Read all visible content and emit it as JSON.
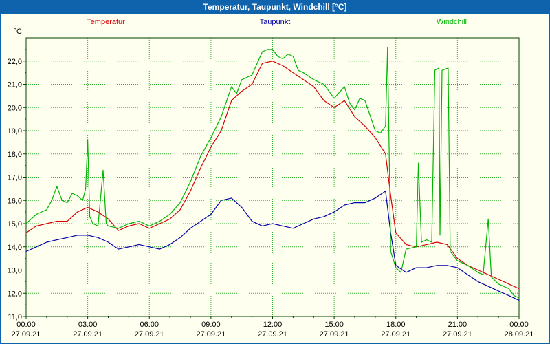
{
  "window": {
    "title": "Temperatur, Taupunkt, Windchill [°C]"
  },
  "colors": {
    "titlebar": "#0f63ad",
    "window_border": "#0f63ad",
    "background": "#fffff0",
    "axis_text": "#000000"
  },
  "legend": {
    "items": [
      {
        "label": "Temperatur",
        "color": "#d40000"
      },
      {
        "label": "Taupunkt",
        "color": "#0000a8"
      },
      {
        "label": "Windchill",
        "color": "#00b400"
      }
    ]
  },
  "chart_data": {
    "type": "line",
    "title": "Temperatur, Taupunkt, Windchill [°C]",
    "xlabel": "",
    "ylabel": "°C",
    "ylim": [
      11.0,
      23.0
    ],
    "xlim_hours": [
      0,
      24
    ],
    "grid": {
      "color": "#00a000",
      "style": "dotted",
      "x_step_hours": 3,
      "y_step": 1.0
    },
    "frame_color": "#004000",
    "yticks": [
      {
        "v": 11,
        "label": "11,0"
      },
      {
        "v": 12,
        "label": "12,0"
      },
      {
        "v": 13,
        "label": "13,0"
      },
      {
        "v": 14,
        "label": "14,0"
      },
      {
        "v": 15,
        "label": "15,0"
      },
      {
        "v": 16,
        "label": "16,0"
      },
      {
        "v": 17,
        "label": "17,0"
      },
      {
        "v": 18,
        "label": "18,0"
      },
      {
        "v": 19,
        "label": "19,0"
      },
      {
        "v": 20,
        "label": "20,0"
      },
      {
        "v": 21,
        "label": "21,0"
      },
      {
        "v": 22,
        "label": "22,0"
      }
    ],
    "xticks": [
      {
        "h": 0,
        "time": "00:00",
        "date": "27.09.21"
      },
      {
        "h": 3,
        "time": "03:00",
        "date": "27.09.21"
      },
      {
        "h": 6,
        "time": "06:00",
        "date": "27.09.21"
      },
      {
        "h": 9,
        "time": "09:00",
        "date": "27.09.21"
      },
      {
        "h": 12,
        "time": "12:00",
        "date": "27.09.21"
      },
      {
        "h": 15,
        "time": "15:00",
        "date": "27.09.21"
      },
      {
        "h": 18,
        "time": "18:00",
        "date": "27.09.21"
      },
      {
        "h": 21,
        "time": "21:00",
        "date": "27.09.21"
      },
      {
        "h": 24,
        "time": "00:00",
        "date": "28.09.21"
      }
    ],
    "series": [
      {
        "name": "Temperatur",
        "color": "#d40000",
        "x": [
          0,
          0.5,
          1,
          1.5,
          2,
          2.5,
          3,
          3.5,
          4,
          4.5,
          5,
          5.5,
          6,
          6.5,
          7,
          7.5,
          8,
          8.5,
          9,
          9.5,
          10,
          10.5,
          11,
          11.5,
          12,
          12.5,
          13,
          13.5,
          14,
          14.5,
          15,
          15.5,
          16,
          16.5,
          17,
          17.5,
          17.75,
          18,
          18.5,
          19,
          19.5,
          20,
          20.5,
          21,
          21.5,
          22,
          22.5,
          23,
          23.5,
          24
        ],
        "y": [
          14.6,
          14.9,
          15.0,
          15.1,
          15.1,
          15.5,
          15.7,
          15.5,
          15.2,
          14.7,
          14.9,
          15.0,
          14.8,
          15.0,
          15.2,
          15.6,
          16.4,
          17.4,
          18.3,
          19.0,
          20.3,
          20.7,
          21.0,
          21.9,
          22.0,
          21.8,
          21.5,
          21.2,
          20.9,
          20.3,
          20.0,
          20.3,
          19.6,
          19.2,
          18.7,
          18.0,
          16.2,
          14.6,
          14.1,
          14.0,
          14.1,
          14.2,
          14.1,
          13.5,
          13.2,
          13.0,
          12.8,
          12.6,
          12.4,
          12.2
        ]
      },
      {
        "name": "Taupunkt",
        "color": "#0000a8",
        "x": [
          0,
          0.5,
          1,
          1.5,
          2,
          2.5,
          3,
          3.5,
          4,
          4.5,
          5,
          5.5,
          6,
          6.5,
          7,
          7.5,
          8,
          8.5,
          9,
          9.5,
          10,
          10.5,
          11,
          11.5,
          12,
          12.5,
          13,
          13.5,
          14,
          14.5,
          15,
          15.5,
          16,
          16.5,
          17,
          17.5,
          17.75,
          18,
          18.5,
          19,
          19.5,
          20,
          20.5,
          21,
          21.5,
          22,
          22.5,
          23,
          23.5,
          24
        ],
        "y": [
          13.8,
          14.0,
          14.2,
          14.3,
          14.4,
          14.5,
          14.5,
          14.4,
          14.2,
          13.9,
          14.0,
          14.1,
          14.0,
          13.9,
          14.1,
          14.4,
          14.8,
          15.1,
          15.4,
          16.0,
          16.1,
          15.7,
          15.1,
          14.9,
          15.0,
          14.9,
          14.8,
          15.0,
          15.2,
          15.3,
          15.5,
          15.8,
          15.9,
          15.9,
          16.1,
          16.4,
          14.6,
          13.2,
          12.9,
          13.1,
          13.1,
          13.2,
          13.2,
          13.1,
          12.8,
          12.5,
          12.3,
          12.1,
          11.9,
          11.7
        ]
      },
      {
        "name": "Windchill",
        "color": "#00b400",
        "x": [
          0,
          0.5,
          1,
          1.25,
          1.5,
          1.75,
          2,
          2.25,
          2.5,
          2.75,
          2.9,
          3.0,
          3.1,
          3.25,
          3.5,
          3.75,
          3.9,
          4,
          4.5,
          5,
          5.5,
          6,
          6.5,
          7,
          7.5,
          8,
          8.5,
          9,
          9.5,
          10,
          10.25,
          10.5,
          11,
          11.5,
          11.75,
          12,
          12.25,
          12.5,
          12.75,
          13,
          13.25,
          13.5,
          14,
          14.5,
          15,
          15.5,
          15.75,
          16,
          16.25,
          16.5,
          17,
          17.25,
          17.5,
          17.6,
          17.75,
          18,
          18.25,
          18.5,
          19,
          19.1,
          19.25,
          19.5,
          19.75,
          19.9,
          20.1,
          20.15,
          20.25,
          20.55,
          20.65,
          21,
          21.5,
          22,
          22.25,
          22.5,
          22.65,
          23,
          23.5,
          23.75,
          24
        ],
        "y": [
          15.0,
          15.4,
          15.6,
          16.0,
          16.6,
          16.0,
          15.9,
          16.3,
          16.2,
          16.0,
          16.5,
          18.6,
          15.3,
          15.0,
          14.9,
          17.3,
          15.0,
          14.9,
          14.8,
          15.0,
          15.1,
          14.9,
          15.1,
          15.4,
          15.9,
          16.8,
          17.9,
          18.7,
          19.6,
          20.9,
          20.6,
          21.2,
          21.4,
          22.4,
          22.5,
          22.5,
          22.2,
          22.1,
          22.3,
          22.2,
          21.6,
          21.5,
          21.2,
          21.0,
          20.4,
          20.9,
          20.2,
          19.9,
          20.4,
          20.3,
          19.0,
          18.9,
          19.2,
          22.6,
          13.8,
          13.1,
          12.9,
          13.9,
          14.0,
          17.6,
          14.2,
          14.3,
          14.2,
          21.6,
          21.7,
          14.5,
          21.6,
          21.7,
          13.8,
          13.4,
          13.2,
          12.9,
          12.8,
          15.2,
          12.7,
          12.4,
          12.2,
          11.9,
          11.8
        ]
      }
    ]
  }
}
